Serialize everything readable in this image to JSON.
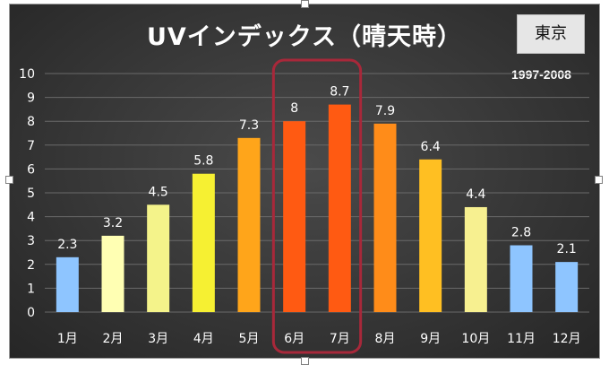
{
  "chart_data": {
    "type": "bar",
    "title": "UVインデックス（晴天時）",
    "city": "東京",
    "period": "1997-2008",
    "categories": [
      "1月",
      "2月",
      "3月",
      "4月",
      "5月",
      "6月",
      "7月",
      "8月",
      "9月",
      "10月",
      "11月",
      "12月"
    ],
    "values": [
      2.3,
      3.2,
      4.5,
      5.8,
      7.3,
      8,
      8.7,
      7.9,
      6.4,
      4.4,
      2.8,
      2.1
    ],
    "data_labels": [
      "2.3",
      "3.2",
      "4.5",
      "5.8",
      "7.3",
      "8",
      "8.7",
      "7.9",
      "6.4",
      "4.4",
      "2.8",
      "2.1"
    ],
    "bar_colors": [
      "#8ec5ff",
      "#ffffb3",
      "#f4f38a",
      "#f6f032",
      "#ffa51a",
      "#ff5a12",
      "#ff5a12",
      "#ff8c19",
      "#ffbf22",
      "#f7f090",
      "#8ec5ff",
      "#8ec5ff"
    ],
    "ylim": [
      0,
      10
    ],
    "yticks": [
      0,
      1,
      2,
      3,
      4,
      5,
      6,
      7,
      8,
      9,
      10
    ],
    "grid": true,
    "highlight_categories": [
      "6月",
      "7月"
    ],
    "highlight_color": "#a8283a",
    "background_color": "#3b3b3b"
  }
}
